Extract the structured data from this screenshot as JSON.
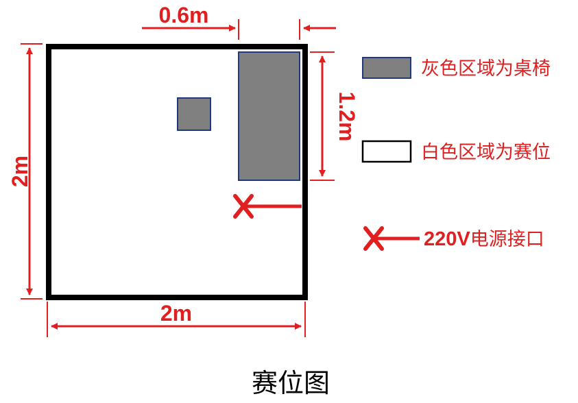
{
  "colors": {
    "annotation": "#e02020",
    "wall": "#000000",
    "furniture_fill": "#808080",
    "furniture_stroke": "#1f3a7a",
    "background": "#ffffff"
  },
  "dimensions": {
    "top_offset": "0.6m",
    "right_height": "1.2m",
    "left_side": "2m",
    "bottom_side": "2m"
  },
  "legend": {
    "gray_area": "灰色区域为桌椅",
    "white_area": "白色区域为赛位",
    "power_bold": "220V",
    "power_rest": "电源接口"
  },
  "icons": {
    "power_marker": "cross-arrow-icon"
  },
  "caption": "赛位图"
}
